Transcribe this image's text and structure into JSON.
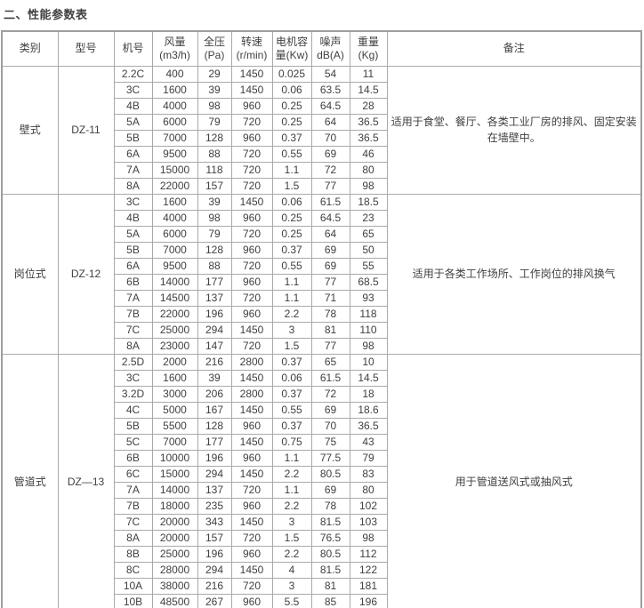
{
  "page": {
    "title": "二、性能参数表"
  },
  "colors": {
    "background": "#ffffff",
    "border_inner": "#a9a9a9",
    "border_outer": "#9e9e9e",
    "text": "#404040"
  },
  "table": {
    "headers": [
      {
        "name": "category",
        "lines": [
          "类别"
        ]
      },
      {
        "name": "model",
        "lines": [
          "型号"
        ]
      },
      {
        "name": "unit-no",
        "lines": [
          "机号"
        ]
      },
      {
        "name": "air-volume",
        "lines": [
          "风量",
          "(m3/h)"
        ]
      },
      {
        "name": "total-pressure",
        "lines": [
          "全压",
          "(Pa)"
        ]
      },
      {
        "name": "speed",
        "lines": [
          "转速",
          "(r/min)"
        ]
      },
      {
        "name": "motor-capacity",
        "lines": [
          "电机容",
          "量(Kw)"
        ]
      },
      {
        "name": "noise",
        "lines": [
          "噪声",
          "dB(A)"
        ]
      },
      {
        "name": "weight",
        "lines": [
          "重量",
          "(Kg)"
        ]
      },
      {
        "name": "remarks",
        "lines": [
          "备注"
        ]
      }
    ],
    "groups": [
      {
        "category": "壁式",
        "model": "DZ-11",
        "remark": "适用于食堂、餐厅、各类工业厂房的排风、固定安装在墙壁中。",
        "rows": [
          [
            "2.2C",
            "400",
            "29",
            "1450",
            "0.025",
            "54",
            "11"
          ],
          [
            "3C",
            "1600",
            "39",
            "1450",
            "0.06",
            "63.5",
            "14.5"
          ],
          [
            "4B",
            "4000",
            "98",
            "960",
            "0.25",
            "64.5",
            "28"
          ],
          [
            "5A",
            "6000",
            "79",
            "720",
            "0.25",
            "64",
            "36.5"
          ],
          [
            "5B",
            "7000",
            "128",
            "960",
            "0.37",
            "70",
            "36.5"
          ],
          [
            "6A",
            "9500",
            "88",
            "720",
            "0.55",
            "69",
            "46"
          ],
          [
            "7A",
            "15000",
            "118",
            "720",
            "1.1",
            "72",
            "80"
          ],
          [
            "8A",
            "22000",
            "157",
            "720",
            "1.5",
            "77",
            "98"
          ]
        ]
      },
      {
        "category": "岗位式",
        "model": "DZ-12",
        "remark": "适用于各类工作场所、工作岗位的排风换气",
        "rows": [
          [
            "3C",
            "1600",
            "39",
            "1450",
            "0.06",
            "61.5",
            "18.5"
          ],
          [
            "4B",
            "4000",
            "98",
            "960",
            "0.25",
            "64.5",
            "23"
          ],
          [
            "5A",
            "6000",
            "79",
            "720",
            "0.25",
            "64",
            "65"
          ],
          [
            "5B",
            "7000",
            "128",
            "960",
            "0.37",
            "69",
            "50"
          ],
          [
            "6A",
            "9500",
            "88",
            "720",
            "0.55",
            "69",
            "55"
          ],
          [
            "6B",
            "14000",
            "177",
            "960",
            "1.1",
            "77",
            "68.5"
          ],
          [
            "7A",
            "14500",
            "137",
            "720",
            "1.1",
            "71",
            "93"
          ],
          [
            "7B",
            "22000",
            "196",
            "960",
            "2.2",
            "78",
            "118"
          ],
          [
            "7C",
            "25000",
            "294",
            "1450",
            "3",
            "81",
            "110"
          ],
          [
            "8A",
            "23000",
            "147",
            "720",
            "1.5",
            "77",
            "98"
          ]
        ]
      },
      {
        "category": "管道式",
        "model": "DZ—13",
        "remark": "用于管道送风式或抽风式",
        "rows": [
          [
            "2.5D",
            "2000",
            "216",
            "2800",
            "0.37",
            "65",
            "10"
          ],
          [
            "3C",
            "1600",
            "39",
            "1450",
            "0.06",
            "61.5",
            "14.5"
          ],
          [
            "3.2D",
            "3000",
            "206",
            "2800",
            "0.37",
            "72",
            "18"
          ],
          [
            "4C",
            "5000",
            "167",
            "1450",
            "0.55",
            "69",
            "18.6"
          ],
          [
            "5B",
            "5500",
            "128",
            "960",
            "0.37",
            "70",
            "36.5"
          ],
          [
            "5C",
            "7000",
            "177",
            "1450",
            "0.75",
            "75",
            "43"
          ],
          [
            "6B",
            "10000",
            "196",
            "960",
            "1.1",
            "77.5",
            "79"
          ],
          [
            "6C",
            "15000",
            "294",
            "1450",
            "2.2",
            "80.5",
            "83"
          ],
          [
            "7A",
            "14000",
            "137",
            "720",
            "1.1",
            "69",
            "80"
          ],
          [
            "7B",
            "18000",
            "235",
            "960",
            "2.2",
            "78",
            "102"
          ],
          [
            "7C",
            "20000",
            "343",
            "1450",
            "3",
            "81.5",
            "103"
          ],
          [
            "8A",
            "20000",
            "157",
            "720",
            "1.5",
            "76.5",
            "98"
          ],
          [
            "8B",
            "25000",
            "196",
            "960",
            "2.2",
            "80.5",
            "112"
          ],
          [
            "8C",
            "28000",
            "294",
            "1450",
            "4",
            "81.5",
            "122"
          ],
          [
            "10A",
            "38000",
            "216",
            "720",
            "3",
            "81",
            "181"
          ],
          [
            "10B",
            "48500",
            "267",
            "960",
            "5.5",
            "85",
            "196"
          ]
        ]
      }
    ]
  }
}
